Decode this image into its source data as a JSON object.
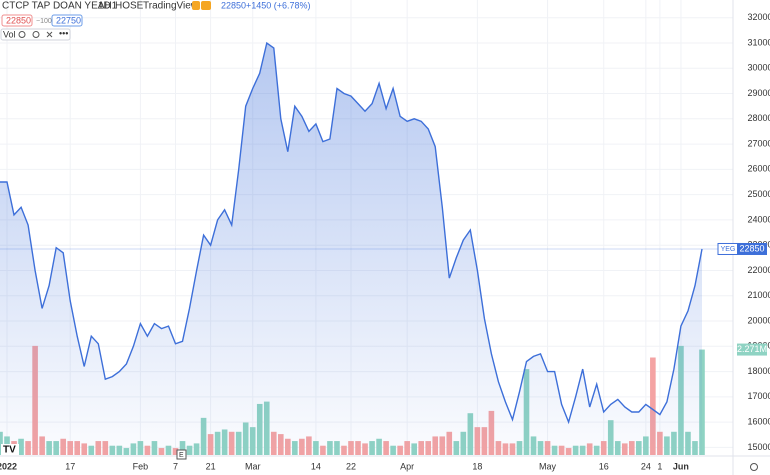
{
  "header": {
    "symbol": "CTCP TAP DOAN YEAH1",
    "interval": "1D",
    "exchange": "HOSE",
    "source": "TradingView",
    "last_price": "22850",
    "change": "+1450 (+6.78%)",
    "bid": "22850",
    "spread": "−100",
    "ask": "22750",
    "volume_label": "Vol"
  },
  "chart_data": {
    "type": "area",
    "categories": [
      null,
      "2022",
      null,
      null,
      null,
      null,
      null,
      null,
      null,
      null,
      "17",
      null,
      null,
      null,
      null,
      null,
      null,
      null,
      null,
      null,
      "Feb",
      null,
      null,
      null,
      null,
      "7",
      null,
      null,
      null,
      null,
      "21",
      null,
      null,
      null,
      null,
      null,
      "Mar",
      null,
      null,
      null,
      null,
      null,
      null,
      null,
      null,
      "14",
      null,
      null,
      null,
      null,
      "22",
      null,
      null,
      null,
      null,
      null,
      null,
      null,
      "Apr",
      null,
      null,
      null,
      null,
      null,
      null,
      null,
      null,
      null,
      "18",
      null,
      null,
      null,
      null,
      null,
      null,
      null,
      null,
      null,
      "May",
      null,
      null,
      null,
      null,
      null,
      null,
      null,
      "16",
      null,
      null,
      null,
      null,
      null,
      "24",
      null,
      "1",
      null,
      null,
      "Jun",
      null,
      null,
      null
    ],
    "series": [
      {
        "name": "YEG",
        "color": "#3d6fd9",
        "values": [
          25500,
          25500,
          24200,
          24500,
          23800,
          22000,
          20500,
          21400,
          22900,
          22700,
          20800,
          19400,
          18200,
          19400,
          19100,
          17700,
          17800,
          18000,
          18300,
          19000,
          19900,
          19400,
          19900,
          19700,
          19800,
          19100,
          19200,
          20500,
          22000,
          23400,
          23000,
          24000,
          24400,
          23800,
          26000,
          28500,
          29200,
          29800,
          31000,
          30800,
          28000,
          26700,
          28500,
          28100,
          27500,
          27800,
          27100,
          27200,
          29200,
          29000,
          28900,
          28600,
          28300,
          28600,
          29400,
          28400,
          29200,
          28100,
          27900,
          28000,
          27900,
          27600,
          26900,
          24500,
          21700,
          22500,
          23200,
          23600,
          22000,
          20100,
          18700,
          17600,
          16800,
          16100,
          17200,
          18400,
          18600,
          18700,
          18000,
          18000,
          16700,
          16000,
          17000,
          18100,
          16600,
          17500,
          16400,
          16700,
          16900,
          16600,
          16400,
          16400,
          16700,
          16500,
          16300,
          16800,
          18100,
          19800,
          20400,
          21400,
          22850
        ],
        "last_label": "22850"
      }
    ],
    "volume": {
      "values": [
        0.5,
        0.4,
        0.3,
        0.35,
        0.3,
        2.35,
        0.4,
        0.3,
        0.3,
        0.35,
        0.3,
        0.3,
        0.25,
        0.2,
        0.3,
        0.3,
        0.2,
        0.2,
        0.15,
        0.25,
        0.3,
        0.2,
        0.3,
        0.15,
        0.2,
        0.15,
        0.3,
        0.2,
        0.25,
        0.8,
        0.45,
        0.5,
        0.55,
        0.5,
        0.5,
        0.7,
        0.6,
        1.1,
        1.15,
        0.5,
        0.45,
        0.35,
        0.3,
        0.35,
        0.4,
        0.3,
        0.2,
        0.3,
        0.3,
        0.2,
        0.3,
        0.3,
        0.25,
        0.3,
        0.35,
        0.3,
        0.2,
        0.2,
        0.3,
        0.25,
        0.3,
        0.3,
        0.4,
        0.4,
        0.5,
        0.3,
        0.5,
        0.9,
        0.6,
        0.6,
        0.95,
        0.3,
        0.25,
        0.25,
        0.3,
        1.85,
        0.4,
        0.3,
        0.3,
        0.2,
        0.2,
        0.15,
        0.2,
        0.2,
        0.25,
        0.2,
        0.3,
        0.75,
        0.3,
        0.25,
        0.3,
        0.3,
        0.4,
        2.1,
        0.5,
        0.4,
        0.5,
        2.35,
        0.5,
        0.3,
        2.271
      ],
      "last_label": "2.271M",
      "up_color": "#8fd3c3",
      "down_color": "#f4a3a3",
      "vlim": [
        0,
        9.8
      ]
    },
    "ylim": [
      14700,
      32700
    ],
    "yticks": [
      15000,
      16000,
      17000,
      18000,
      19000,
      20000,
      21000,
      22000,
      23000,
      24000,
      25000,
      26000,
      27000,
      28000,
      29000,
      30000,
      31000,
      32000
    ],
    "grid": true
  }
}
